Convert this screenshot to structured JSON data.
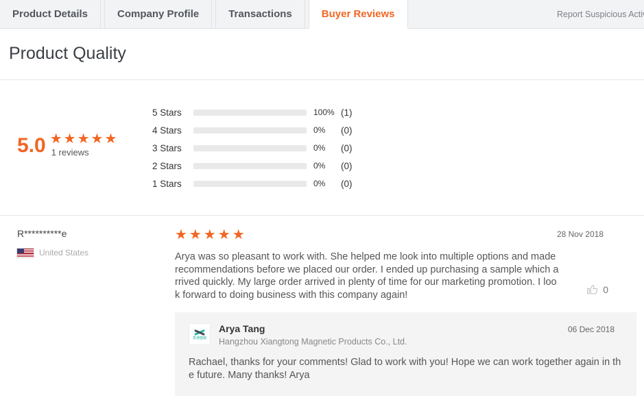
{
  "colors": {
    "accent": "#f26522",
    "bar_track": "#e9e9e9",
    "reply_bg": "#f4f4f4"
  },
  "tab_bar": {
    "tabs": [
      {
        "label": "Product Details",
        "active": false
      },
      {
        "label": "Company Profile",
        "active": false
      },
      {
        "label": "Transactions",
        "active": false
      },
      {
        "label": "Buyer Reviews",
        "active": true
      }
    ],
    "report_link": "Report Suspicious Activity"
  },
  "page": {
    "title": "Product Quality"
  },
  "summary": {
    "score": "5.0",
    "stars": "★★★★★",
    "reviews_count_label": "1 reviews"
  },
  "chart_data": {
    "type": "bar",
    "orientation": "horizontal",
    "categories": [
      "5 Stars",
      "4 Stars",
      "3 Stars",
      "2 Stars",
      "1 Stars"
    ],
    "values": [
      100,
      0,
      0,
      0,
      0
    ],
    "value_labels": [
      "100%",
      "0%",
      "0%",
      "0%",
      "0%"
    ],
    "count_labels": [
      "(1)",
      "(0)",
      "(0)",
      "(0)",
      "(0)"
    ],
    "xlim": [
      0,
      100
    ],
    "bar_color": "#f26522",
    "track_color": "#e9e9e9"
  },
  "rating_rows": [
    {
      "label": "5 Stars",
      "percent": "100%",
      "value": 100,
      "count": "(1)"
    },
    {
      "label": "4 Stars",
      "percent": "0%",
      "value": 0,
      "count": "(0)"
    },
    {
      "label": "3 Stars",
      "percent": "0%",
      "value": 0,
      "count": "(0)"
    },
    {
      "label": "2 Stars",
      "percent": "0%",
      "value": 0,
      "count": "(0)"
    },
    {
      "label": "1 Stars",
      "percent": "0%",
      "value": 0,
      "count": "(0)"
    }
  ],
  "review": {
    "author": "R**********e",
    "country": "United States",
    "stars": "★★★★★",
    "date": "28 Nov 2018",
    "text": "Arya was so pleasant to work with. She helped me look into multiple options and made recommendations before we placed our order. I ended up purchasing a sample which arrived quickly. My large order arrived in plenty of time for our marketing promotion. I look forward to doing business with this company again!",
    "helpful_count": "0"
  },
  "reply": {
    "author": "Arya Tang",
    "company": "Hangzhou Xiangtong Magnetic Products Co., Ltd.",
    "logo_text": "享通塑磁",
    "date": "06 Dec 2018",
    "text": "Rachael, thanks for your comments! Glad to work with you! Hope we can work together again in the future. Many thanks! Arya"
  }
}
